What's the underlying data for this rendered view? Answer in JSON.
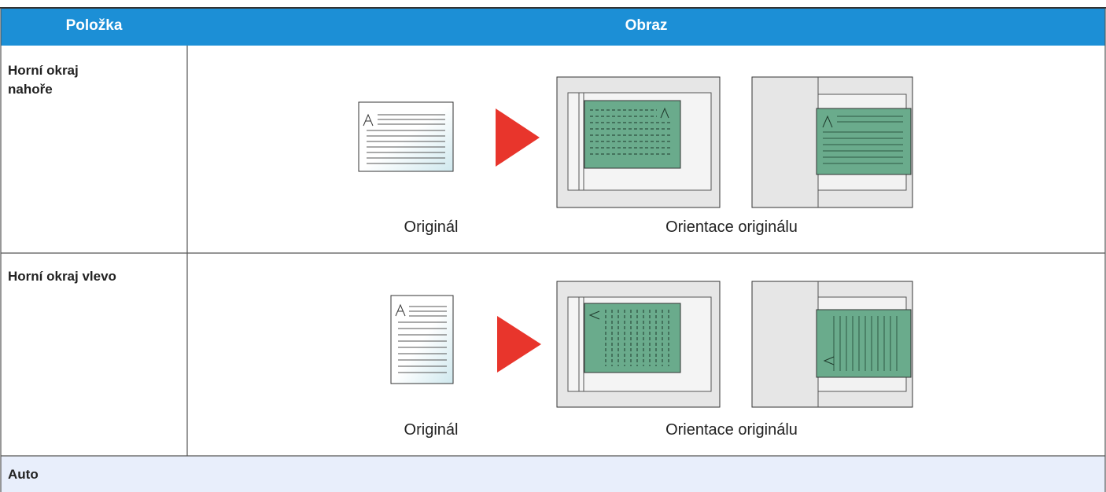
{
  "table": {
    "header": [
      "Položka",
      "Obraz"
    ],
    "rows": [
      {
        "label": "Horní okraj nahoře",
        "captions": [
          "Originál",
          "Orientace originálu"
        ]
      },
      {
        "label": "Horní okraj vlevo",
        "captions": [
          "Originál",
          "Orientace originálu"
        ]
      },
      {
        "label": "Auto"
      }
    ]
  }
}
